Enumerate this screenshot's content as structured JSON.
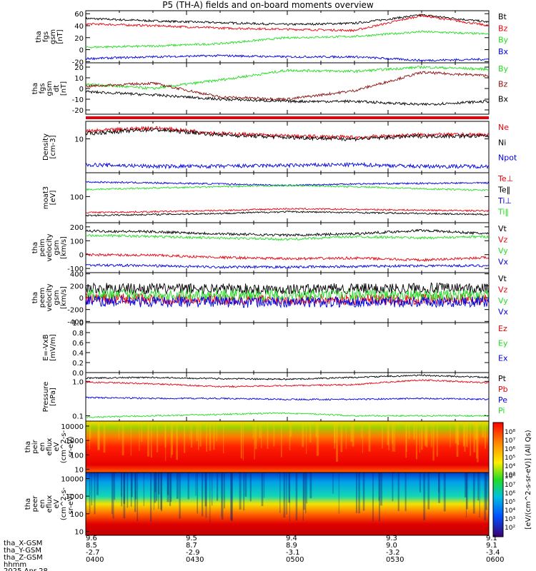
{
  "title": "P5 (TH-A) fields and on-board moments overview",
  "colors": {
    "black": "#000000",
    "red": "#e8000b",
    "darkred": "#8b1010",
    "green": "#22dd22",
    "blue": "#0000e0"
  },
  "chart_data": [
    {
      "type": "line",
      "ylabel": [
        "tha",
        "fgs",
        "gsm",
        "[nT]"
      ],
      "yticks": [
        "-20",
        "0",
        "20",
        "40",
        "60"
      ],
      "ylim": [
        -22,
        65
      ],
      "series": [
        {
          "name": "Bt",
          "color": "black",
          "x": [
            0,
            20,
            40,
            60,
            80,
            100,
            120
          ],
          "y": [
            52,
            48,
            45,
            42,
            44,
            58,
            46
          ]
        },
        {
          "name": "Bz",
          "color": "red",
          "x": [
            0,
            20,
            40,
            60,
            80,
            100,
            120
          ],
          "y": [
            43,
            40,
            36,
            34,
            32,
            57,
            40
          ]
        },
        {
          "name": "By",
          "color": "green",
          "x": [
            0,
            20,
            40,
            60,
            80,
            100,
            120
          ],
          "y": [
            4,
            6,
            10,
            20,
            22,
            30,
            26
          ]
        },
        {
          "name": "Bx",
          "color": "blue",
          "x": [
            0,
            20,
            40,
            60,
            80,
            100,
            120
          ],
          "y": [
            -15,
            -12,
            -10,
            -12,
            -12,
            -18,
            -16
          ]
        }
      ]
    },
    {
      "type": "line",
      "ylabel": [
        "tha",
        "fgs",
        "gsm",
        "dt",
        "[nT]"
      ],
      "yticks": [
        "-20",
        "-10",
        "0",
        "10",
        "20"
      ],
      "ylim": [
        -24,
        24
      ],
      "series": [
        {
          "name": "By",
          "color": "green",
          "x": [
            0,
            20,
            40,
            60,
            80,
            100,
            120
          ],
          "y": [
            4,
            0,
            8,
            17,
            16,
            20,
            18
          ]
        },
        {
          "name": "Bz",
          "color": "darkred",
          "x": [
            0,
            20,
            40,
            60,
            80,
            100,
            120
          ],
          "y": [
            2,
            5,
            -8,
            -10,
            -2,
            15,
            12
          ]
        },
        {
          "name": "Bx",
          "color": "black",
          "x": [
            0,
            20,
            40,
            60,
            80,
            100,
            120
          ],
          "y": [
            -3,
            -6,
            -10,
            -12,
            -12,
            -15,
            -12
          ]
        }
      ]
    },
    {
      "type": "line",
      "ylabel": [
        "Density",
        "[cm-3]"
      ],
      "yticks": [
        "10"
      ],
      "log": true,
      "ylim": [
        1.2,
        30
      ],
      "series": [
        {
          "name": "Ne",
          "color": "red",
          "x": [
            0,
            20,
            40,
            60,
            80,
            100,
            120
          ],
          "y": [
            16,
            20,
            14,
            12,
            11,
            13,
            13
          ]
        },
        {
          "name": "Ni",
          "color": "black",
          "x": [
            0,
            20,
            40,
            60,
            80,
            100,
            120
          ],
          "y": [
            14,
            18,
            13,
            11,
            10,
            12,
            12
          ]
        },
        {
          "name": "Npot",
          "color": "blue",
          "x": [
            0,
            20,
            40,
            60,
            80,
            100,
            120
          ],
          "y": [
            2.0,
            1.8,
            1.8,
            1.9,
            2.0,
            1.8,
            1.8
          ]
        }
      ]
    },
    {
      "type": "line",
      "ylabel": [
        "moat3",
        "[eV]"
      ],
      "yticks": [
        "100"
      ],
      "log": true,
      "ylim": [
        14,
        600
      ],
      "series": [
        {
          "name": "Te⊥",
          "color": "red",
          "x": [
            0,
            20,
            40,
            60,
            80,
            100,
            120
          ],
          "y": [
            30,
            32,
            35,
            40,
            38,
            36,
            34
          ]
        },
        {
          "name": "Te‖",
          "color": "black",
          "x": [
            0,
            20,
            40,
            60,
            80,
            100,
            120
          ],
          "y": [
            24,
            26,
            28,
            32,
            30,
            28,
            26
          ]
        },
        {
          "name": "Ti⊥",
          "color": "blue",
          "x": [
            0,
            20,
            40,
            60,
            80,
            100,
            120
          ],
          "y": [
            300,
            280,
            260,
            230,
            260,
            270,
            280
          ]
        },
        {
          "name": "Ti‖",
          "color": "green",
          "x": [
            0,
            20,
            40,
            60,
            80,
            100,
            120
          ],
          "y": [
            170,
            190,
            210,
            230,
            210,
            180,
            160
          ]
        }
      ]
    },
    {
      "type": "line",
      "ylabel": [
        "tha",
        "peim",
        "velocity",
        "gsm",
        "[km/s]"
      ],
      "yticks": [
        "-100",
        "0",
        "100",
        "200"
      ],
      "ylim": [
        -130,
        230
      ],
      "series": [
        {
          "name": "Vt",
          "color": "black",
          "x": [
            0,
            20,
            40,
            60,
            80,
            100,
            120
          ],
          "y": [
            170,
            165,
            150,
            140,
            150,
            175,
            150
          ]
        },
        {
          "name": "Vz",
          "color": "red",
          "x": [
            0,
            20,
            40,
            60,
            80,
            100,
            120
          ],
          "y": [
            0,
            -5,
            -20,
            -30,
            -25,
            -40,
            -20
          ]
        },
        {
          "name": "Vy",
          "color": "green",
          "x": [
            0,
            20,
            40,
            60,
            80,
            100,
            120
          ],
          "y": [
            140,
            130,
            120,
            110,
            130,
            120,
            130
          ]
        },
        {
          "name": "Vx",
          "color": "blue",
          "x": [
            0,
            20,
            40,
            60,
            80,
            100,
            120
          ],
          "y": [
            -75,
            -80,
            -90,
            -90,
            -85,
            -80,
            -80
          ]
        }
      ]
    },
    {
      "type": "line",
      "ylabel": [
        "tha",
        "peem",
        "velocity",
        "gsm",
        "[km/s]"
      ],
      "yticks": [
        "-400",
        "-200",
        "0",
        "200",
        "400"
      ],
      "ylim": [
        -420,
        420
      ],
      "series": [
        {
          "name": "Vt",
          "color": "black",
          "x": [
            0,
            20,
            40,
            60,
            80,
            100,
            120
          ],
          "y": [
            160,
            150,
            150,
            140,
            150,
            160,
            150
          ]
        },
        {
          "name": "Vz",
          "color": "red",
          "x": [
            0,
            20,
            40,
            60,
            80,
            100,
            120
          ],
          "y": [
            -20,
            -25,
            -30,
            -30,
            -30,
            -30,
            -30
          ]
        },
        {
          "name": "Vy",
          "color": "green",
          "x": [
            0,
            20,
            40,
            60,
            80,
            100,
            120
          ],
          "y": [
            60,
            50,
            50,
            40,
            40,
            40,
            40
          ]
        },
        {
          "name": "Vx",
          "color": "blue",
          "x": [
            0,
            20,
            40,
            60,
            80,
            100,
            120
          ],
          "y": [
            -60,
            -70,
            -70,
            -80,
            -70,
            -70,
            -70
          ]
        }
      ]
    },
    {
      "type": "line",
      "ylabel": [
        "E=-VxB",
        "[mV/m]"
      ],
      "yticks": [
        "0.0",
        "0.2",
        "0.4",
        "0.6",
        "0.8",
        "1.0"
      ],
      "ylim": [
        0,
        1
      ],
      "series": [
        {
          "name": "Ez",
          "color": "red",
          "x": [],
          "y": []
        },
        {
          "name": "Ey",
          "color": "green",
          "x": [],
          "y": []
        },
        {
          "name": "Ex",
          "color": "blue",
          "x": [],
          "y": []
        }
      ]
    },
    {
      "type": "line",
      "ylabel": [
        "Pressure",
        "[nPa]"
      ],
      "yticks": [
        "0.1",
        "1.0"
      ],
      "log": true,
      "ylim": [
        0.07,
        1.8
      ],
      "series": [
        {
          "name": "Pt",
          "color": "black",
          "x": [
            0,
            20,
            40,
            60,
            80,
            100,
            120
          ],
          "y": [
            1.25,
            1.3,
            1.2,
            1.15,
            1.3,
            1.5,
            1.3
          ]
        },
        {
          "name": "Pb",
          "color": "red",
          "x": [
            0,
            20,
            40,
            60,
            80,
            100,
            120
          ],
          "y": [
            0.95,
            0.85,
            0.7,
            0.75,
            0.8,
            1.1,
            0.9
          ]
        },
        {
          "name": "Pe",
          "color": "blue",
          "x": [
            0,
            20,
            40,
            60,
            80,
            100,
            120
          ],
          "y": [
            0.34,
            0.32,
            0.32,
            0.3,
            0.3,
            0.32,
            0.3
          ]
        },
        {
          "name": "Pi",
          "color": "green",
          "x": [
            0,
            20,
            40,
            60,
            80,
            100,
            120
          ],
          "y": [
            0.09,
            0.1,
            0.11,
            0.12,
            0.1,
            0.1,
            0.1
          ]
        }
      ]
    },
    {
      "type": "heatmap",
      "ylabel": [
        "tha",
        "peir",
        "en",
        "eflux",
        "eV",
        "(cm^2-s-",
        "sr-eV)"
      ],
      "yticks": [
        "10",
        "100",
        "1000",
        "10000"
      ]
    },
    {
      "type": "heatmap",
      "ylabel": [
        "tha",
        "peer",
        "en",
        "eflux",
        "eV",
        "(cm^2-s-",
        "sr-eV)"
      ],
      "yticks": [
        "10",
        "100",
        "1000",
        "10000"
      ]
    }
  ],
  "colorbar": {
    "label": "[eV/(cm^2-s-sr-eV)] (All Qs)",
    "upper_ticks": [
      "10⁸",
      "10⁷",
      "10⁶",
      "10⁵",
      "10⁴",
      "10³"
    ],
    "lower_ticks": [
      "10⁸",
      "10⁷",
      "10⁶",
      "10⁵",
      "10⁴",
      "10³",
      "10²"
    ]
  },
  "footer": {
    "row_labels": [
      "tha_X-GSM",
      "tha_Y-GSM",
      "tha_Z-GSM",
      "hhmm",
      "2025 Apr 28"
    ],
    "columns": [
      [
        "9.6",
        "8.5",
        "-2.7",
        "0400"
      ],
      [
        "9.5",
        "8.7",
        "-2.9",
        "0430"
      ],
      [
        "9.4",
        "8.9",
        "-3.1",
        "0500"
      ],
      [
        "9.3",
        "9.0",
        "-3.2",
        "0530"
      ],
      [
        "9.1",
        "9.1",
        "-3.4",
        "0600"
      ]
    ]
  }
}
